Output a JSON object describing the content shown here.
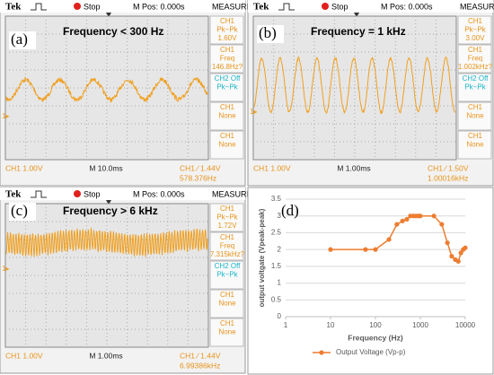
{
  "scopes": [
    {
      "label": "(a)",
      "frequency": "Frequency < 300 Hz",
      "header": {
        "brand": "Tek",
        "state": "Stop",
        "mpos": "M Pos: 0.000s",
        "menu": "MEASURE"
      },
      "measurements": [
        {
          "lines": [
            "CH1",
            "Pk−Pk",
            "1.60V"
          ],
          "color": "#e8931a"
        },
        {
          "lines": [
            "CH1",
            "Freq",
            "146.8Hz?"
          ],
          "color": "#e8931a"
        },
        {
          "lines": [
            "CH2 Off",
            "Pk−Pk"
          ],
          "color": "#19b5c9"
        },
        {
          "lines": [
            "CH1",
            "None"
          ],
          "color": "#e8931a"
        },
        {
          "lines": [
            "CH1",
            "None"
          ],
          "color": "#e8931a"
        }
      ],
      "footer": [
        "CH1  1.00V",
        "M 10.0ms",
        "CH1 ∕ 1.44V",
        "578.376Hz"
      ]
    },
    {
      "label": "(b)",
      "frequency": "Frequency = 1 kHz",
      "header": {
        "brand": "Tek",
        "state": "Stop",
        "mpos": "M Pos: 0.000s",
        "menu": "MEASURE"
      },
      "measurements": [
        {
          "lines": [
            "CH1",
            "Pk−Pk",
            "3.00V"
          ],
          "color": "#e8931a"
        },
        {
          "lines": [
            "CH1",
            "Freq",
            "1.002kHz?"
          ],
          "color": "#e8931a"
        },
        {
          "lines": [
            "CH2 Off",
            "Pk−Pk"
          ],
          "color": "#19b5c9"
        },
        {
          "lines": [
            "CH1",
            "None"
          ],
          "color": "#e8931a"
        },
        {
          "lines": [
            "CH1",
            "None"
          ],
          "color": "#e8931a"
        }
      ],
      "footer": [
        "CH1  1.00V",
        "M 1.00ms",
        "CH1 ∕ 1.50V",
        "1.00016kHz"
      ]
    },
    {
      "label": "(c)",
      "frequency": "Frequency > 6 kHz",
      "header": {
        "brand": "Tek",
        "state": "Stop",
        "mpos": "M Pos: 0.000s",
        "menu": "MEASURE"
      },
      "measurements": [
        {
          "lines": [
            "CH1",
            "Pk−Pk",
            "1.72V"
          ],
          "color": "#e8931a"
        },
        {
          "lines": [
            "CH1",
            "Freq",
            "7.315kHz?"
          ],
          "color": "#e8931a"
        },
        {
          "lines": [
            "CH2 Off",
            "Pk−Pk"
          ],
          "color": "#19b5c9"
        },
        {
          "lines": [
            "CH1",
            "None"
          ],
          "color": "#e8931a"
        },
        {
          "lines": [
            "CH1",
            "None"
          ],
          "color": "#e8931a"
        }
      ],
      "footer": [
        "CH1  1.00V",
        "M 1.00ms",
        "CH1 ∕ 1.44V",
        "6.99386kHz"
      ]
    }
  ],
  "chart_data": {
    "type": "line",
    "annotation": "(d)",
    "xlabel": "Frequency (Hz)",
    "ylabel": "output voltgate (Vpeak-peak)",
    "x": [
      10,
      60,
      100,
      200,
      300,
      400,
      500,
      600,
      700,
      800,
      900,
      1000,
      2000,
      3000,
      4000,
      5000,
      6000,
      7000,
      8000,
      9000,
      10000
    ],
    "series": [
      {
        "name": "Output Voltage (Vp-p)",
        "color": "#ed7d31",
        "values": [
          2,
          2,
          2,
          2.3,
          2.75,
          2.85,
          2.9,
          3,
          3,
          3,
          3,
          3,
          3,
          2.75,
          2.2,
          1.8,
          1.7,
          1.65,
          1.9,
          2,
          2.05
        ]
      }
    ],
    "xscale": "log",
    "xlim": [
      1,
      10000
    ],
    "xticks": [
      1,
      10,
      100,
      1000,
      10000
    ],
    "ylim": [
      0,
      3.5
    ],
    "yticks": [
      0,
      0.5,
      1,
      1.5,
      2,
      2.5,
      3,
      3.5
    ],
    "grid": true,
    "legend": "bottom"
  }
}
